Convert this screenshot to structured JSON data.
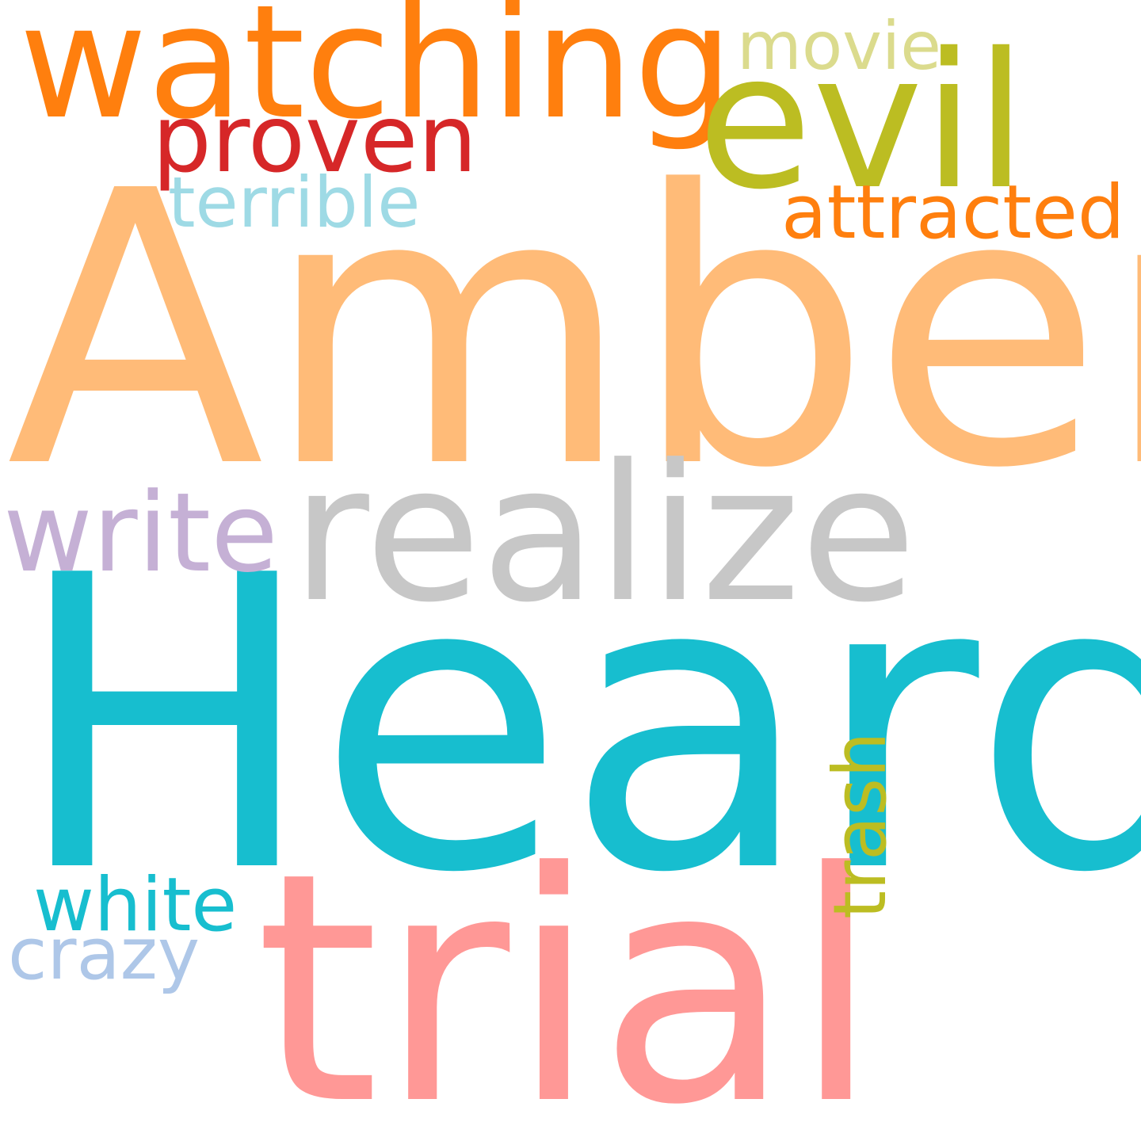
{
  "words": [
    {
      "text": "Amber",
      "color": "#ffbb78"
    },
    {
      "text": "Heard",
      "color": "#17becf"
    },
    {
      "text": "trial",
      "color": "#ff9896"
    },
    {
      "text": "realize",
      "color": "#c7c7c7"
    },
    {
      "text": "watching",
      "color": "#ff7f0e"
    },
    {
      "text": "evil",
      "color": "#bcbd22"
    },
    {
      "text": "proven",
      "color": "#d62728"
    },
    {
      "text": "terrible",
      "color": "#9edae5"
    },
    {
      "text": "movie",
      "color": "#dbdb8d"
    },
    {
      "text": "attracted",
      "color": "#ff7f0e"
    },
    {
      "text": "write",
      "color": "#c5b0d5"
    },
    {
      "text": "trash",
      "color": "#bcbd22"
    },
    {
      "text": "white",
      "color": "#17becf"
    },
    {
      "text": "crazy",
      "color": "#aec7e8"
    }
  ]
}
